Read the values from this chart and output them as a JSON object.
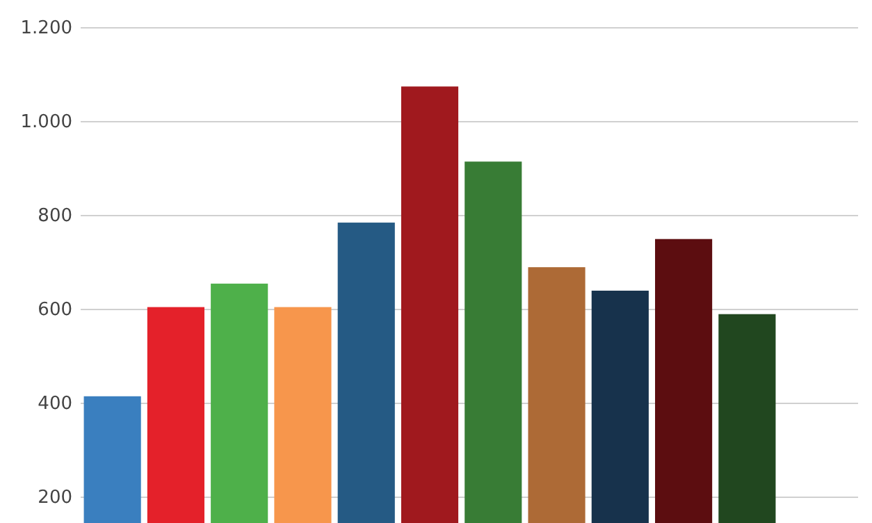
{
  "chart_data": {
    "type": "bar",
    "categories": [
      null,
      null,
      null,
      null,
      null,
      null,
      null,
      null,
      null,
      null,
      null
    ],
    "values": [
      415,
      605,
      655,
      605,
      785,
      1075,
      915,
      690,
      640,
      750,
      590
    ],
    "colors": [
      "#3a7fbf",
      "#e4212a",
      "#4eb04a",
      "#f7964c",
      "#255a84",
      "#a0191e",
      "#387c35",
      "#ad6a36",
      "#17324c",
      "#5c0d10",
      "#21471f"
    ],
    "ylim": [
      145,
      1200
    ],
    "yticks": [
      200,
      400,
      600,
      800,
      {
        "value": 1000,
        "label": "1.000"
      },
      {
        "value": 1200,
        "label": "1.200"
      }
    ],
    "grid": "y",
    "tick_labels": "y"
  }
}
